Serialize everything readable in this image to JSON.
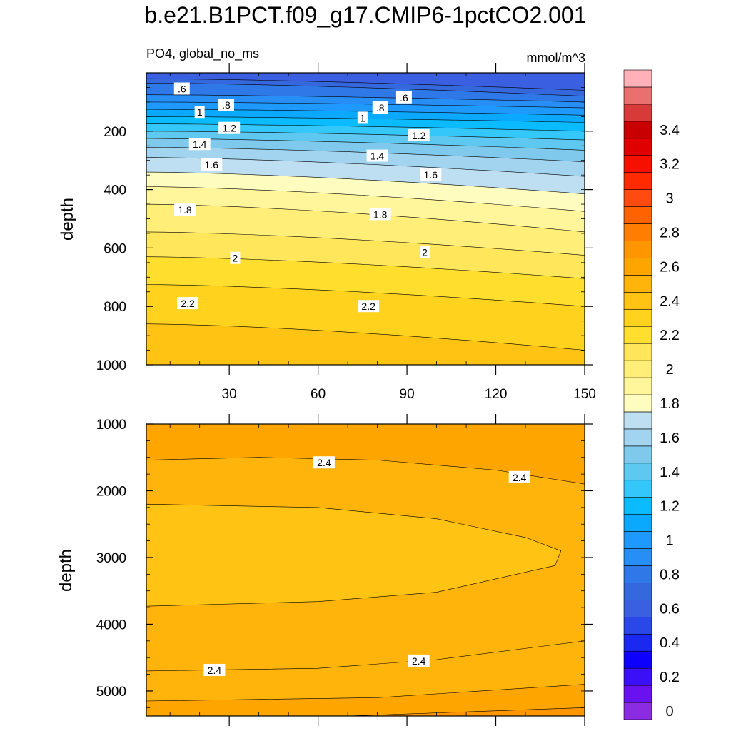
{
  "chart_data": {
    "type": "contour",
    "title": "b.e21.B1PCT.f09_g17.CMIP6-1pctCO2.001",
    "variable": "PO4, global_no_ms",
    "units": "mmol/m^3",
    "x": {
      "range": [
        2,
        150
      ],
      "ticks": [
        "30",
        "60",
        "90",
        "120",
        "150"
      ],
      "tick_values": [
        30,
        60,
        90,
        120,
        150
      ]
    },
    "colorbar": {
      "levels": [
        0,
        0.1,
        0.2,
        0.3,
        0.4,
        0.5,
        0.6,
        0.7,
        0.8,
        0.9,
        1.0,
        1.1,
        1.2,
        1.3,
        1.4,
        1.5,
        1.6,
        1.7,
        1.8,
        1.9,
        2.0,
        2.1,
        2.2,
        2.3,
        2.4,
        2.5,
        2.6,
        2.7,
        2.8,
        2.9,
        3.0,
        3.1,
        3.2,
        3.3,
        3.4,
        3.5
      ],
      "labels": [
        "0",
        "0.2",
        "0.4",
        "0.6",
        "0.8",
        "1",
        "1.2",
        "1.4",
        "1.6",
        "1.8",
        "2",
        "2.2",
        "2.4",
        "2.6",
        "2.8",
        "3",
        "3.2",
        "3.4"
      ],
      "label_values": [
        0,
        0.2,
        0.4,
        0.6,
        0.8,
        1.0,
        1.2,
        1.4,
        1.6,
        1.8,
        2.0,
        2.2,
        2.4,
        2.6,
        2.8,
        3.0,
        3.2,
        3.4
      ],
      "colors": [
        "#8b2be2",
        "#6a11f0",
        "#3c10f7",
        "#0d00ff",
        "#1a28f0",
        "#2a47ea",
        "#3a5fe0",
        "#3568dd",
        "#2f78e8",
        "#268ef5",
        "#1e99ff",
        "#0aa9ff",
        "#0bbbff",
        "#33c7fa",
        "#5ec8f0",
        "#7fc9ec",
        "#a2d4f0",
        "#bedff2",
        "#fffcc0",
        "#fff59a",
        "#ffee78",
        "#ffe65a",
        "#ffde2e",
        "#ffd21e",
        "#ffc313",
        "#ffb40c",
        "#ffa500",
        "#ff9600",
        "#ff7d00",
        "#ff6300",
        "#ff4a10",
        "#ff2a00",
        "#f51000",
        "#e00000",
        "#c80000",
        "#d83a3a",
        "#ea6f6f",
        "#ffb0b8"
      ]
    },
    "upper_panel": {
      "ylabel": "depth",
      "ylim": [
        1000,
        0
      ],
      "y_ticks": [
        "200",
        "400",
        "600",
        "800",
        "1000"
      ],
      "y_tick_values": [
        200,
        400,
        600,
        800,
        1000
      ],
      "contours": [
        {
          "level": 0.6,
          "depth": [
            20,
            60
          ]
        },
        {
          "level": 0.7,
          "depth": [
            35,
            80
          ]
        },
        {
          "level": 0.8,
          "depth": [
            75,
            100
          ]
        },
        {
          "level": 0.9,
          "depth": [
            100,
            120
          ]
        },
        {
          "level": 1.0,
          "depth": [
            125,
            145
          ]
        },
        {
          "level": 1.1,
          "depth": [
            150,
            170
          ]
        },
        {
          "level": 1.2,
          "depth": [
            175,
            200
          ]
        },
        {
          "level": 1.3,
          "depth": [
            200,
            230
          ]
        },
        {
          "level": 1.4,
          "depth": [
            225,
            265
          ]
        },
        {
          "level": 1.5,
          "depth": [
            255,
            305
          ]
        },
        {
          "level": 1.6,
          "depth": [
            290,
            355
          ]
        },
        {
          "level": 1.7,
          "depth": [
            340,
            415
          ]
        },
        {
          "level": 1.8,
          "depth": [
            390,
            475
          ]
        },
        {
          "level": 1.9,
          "depth": [
            450,
            545
          ]
        },
        {
          "level": 2.0,
          "depth": [
            545,
            625
          ]
        },
        {
          "level": 2.1,
          "depth": [
            630,
            705
          ]
        },
        {
          "level": 2.2,
          "depth": [
            725,
            800
          ]
        },
        {
          "level": 2.3,
          "depth": [
            860,
            950
          ]
        }
      ],
      "labels": [
        {
          "text": ".6",
          "x": 14,
          "depth": 55
        },
        {
          "text": ".8",
          "x": 29,
          "depth": 110
        },
        {
          "text": "1",
          "x": 20,
          "depth": 135
        },
        {
          "text": "1.2",
          "x": 30,
          "depth": 190
        },
        {
          "text": "1.4",
          "x": 20,
          "depth": 245
        },
        {
          "text": "1.6",
          "x": 24,
          "depth": 315
        },
        {
          "text": "1.8",
          "x": 15,
          "depth": 470
        },
        {
          "text": "2",
          "x": 32,
          "depth": 635
        },
        {
          "text": "2.2",
          "x": 16,
          "depth": 790
        },
        {
          "text": ".6",
          "x": 89,
          "depth": 85
        },
        {
          "text": ".8",
          "x": 81,
          "depth": 120
        },
        {
          "text": "1",
          "x": 75,
          "depth": 155
        },
        {
          "text": "1.2",
          "x": 94,
          "depth": 215
        },
        {
          "text": "1.4",
          "x": 80,
          "depth": 285
        },
        {
          "text": "1.6",
          "x": 98,
          "depth": 350
        },
        {
          "text": "1.8",
          "x": 81,
          "depth": 485
        },
        {
          "text": "2",
          "x": 96,
          "depth": 615
        },
        {
          "text": "2.2",
          "x": 77,
          "depth": 800
        }
      ]
    },
    "lower_panel": {
      "ylabel": "depth",
      "ylim": [
        1000,
        5375
      ],
      "y_ticks": [
        "1000",
        "2000",
        "3000",
        "4000",
        "5000"
      ],
      "y_tick_values": [
        1000,
        2000,
        3000,
        4000,
        5000
      ],
      "contours": [
        {
          "level": 2.4,
          "path": [
            [
              2,
              1540
            ],
            [
              40,
              1500
            ],
            [
              80,
              1540
            ],
            [
              120,
              1690
            ],
            [
              150,
              1900
            ]
          ]
        },
        {
          "level": 2.3,
          "path": [
            [
              2,
              2200
            ],
            [
              60,
              2250
            ],
            [
              100,
              2420
            ],
            [
              130,
              2700
            ],
            [
              142,
              2900
            ],
            [
              140,
              3120
            ],
            [
              100,
              3520
            ],
            [
              60,
              3660
            ],
            [
              2,
              3730
            ]
          ]
        },
        {
          "level": 2.4,
          "path": [
            [
              2,
              4700
            ],
            [
              60,
              4660
            ],
            [
              100,
              4530
            ],
            [
              150,
              4250
            ]
          ]
        },
        {
          "level": 2.5,
          "path": [
            [
              2,
              5150
            ],
            [
              80,
              5100
            ],
            [
              150,
              4900
            ]
          ]
        },
        {
          "level": 2.6,
          "path": [
            [
              70,
              5375
            ],
            [
              150,
              5250
            ]
          ]
        }
      ],
      "labels": [
        {
          "text": "2.4",
          "x": 62,
          "depth": 1580
        },
        {
          "text": "2.4",
          "x": 128,
          "depth": 1800
        },
        {
          "text": "2.4",
          "x": 25,
          "depth": 4690
        },
        {
          "text": "2.4",
          "x": 94,
          "depth": 4550
        }
      ]
    }
  }
}
